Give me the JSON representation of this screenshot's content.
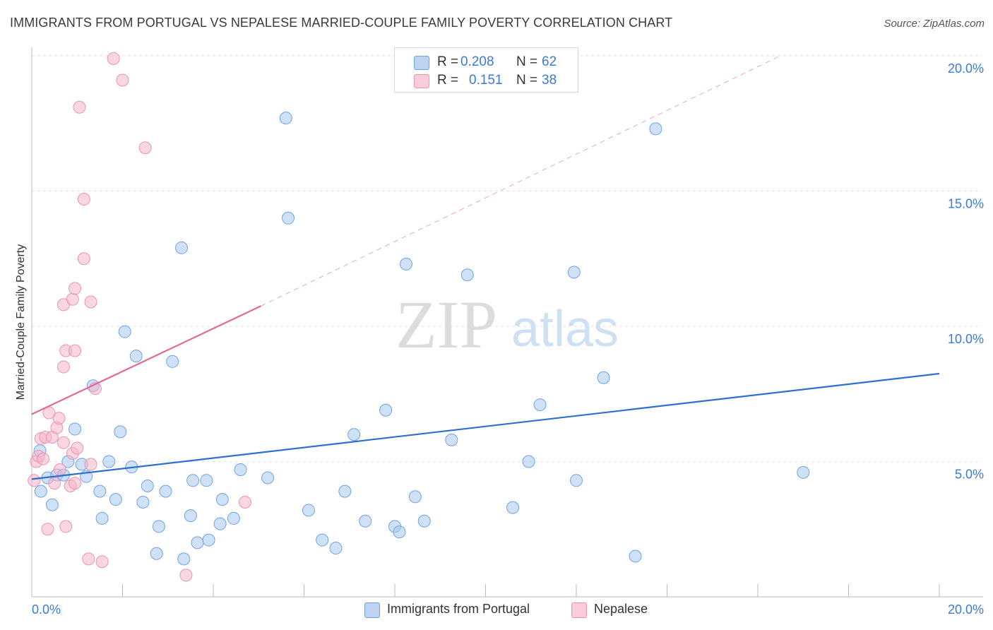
{
  "title": "IMMIGRANTS FROM PORTUGAL VS NEPALESE MARRIED-COUPLE FAMILY POVERTY CORRELATION CHART",
  "source": "Source: ZipAtlas.com",
  "watermark": {
    "zip": "ZIP",
    "atlas": "atlas"
  },
  "legend_top": [
    {
      "r_label": "R =",
      "r_value": "0.208",
      "n_label": "N =",
      "n_value": "62",
      "color": "#a8c8f0"
    },
    {
      "r_label": "R =",
      "r_value": "0.151",
      "n_label": "N =",
      "n_value": "38",
      "color": "#f5b5c8"
    }
  ],
  "legend_bottom": [
    {
      "label": "Immigrants from Portugal",
      "color": "#a8c8f0"
    },
    {
      "label": "Nepalese",
      "color": "#f5b5c8"
    }
  ],
  "chart_data": {
    "type": "scatter",
    "title": "IMMIGRANTS FROM PORTUGAL VS NEPALESE MARRIED-COUPLE FAMILY POVERTY CORRELATION CHART",
    "ylabel": "Married-Couple Family Poverty",
    "xlabel": "",
    "xlim": [
      0,
      20
    ],
    "ylim": [
      0,
      20
    ],
    "x_tick_labels": [
      {
        "value": 0,
        "label": "0.0%"
      },
      {
        "value": 20,
        "label": "20.0%"
      }
    ],
    "y_tick_labels": [
      {
        "value": 5,
        "label": "5.0%"
      },
      {
        "value": 10,
        "label": "10.0%"
      },
      {
        "value": 15,
        "label": "15.0%"
      },
      {
        "value": 20,
        "label": "20.0%"
      }
    ],
    "series": [
      {
        "name": "Immigrants from Portugal",
        "color": "#6fa3e0",
        "fill": "#a8c8f0",
        "trend": {
          "x0": 0,
          "y0": 4.35,
          "x1": 20,
          "y1": 8.25,
          "color": "#2f6fcf",
          "dashed_extension": false
        },
        "points": [
          [
            0.18,
            5.4
          ],
          [
            0.2,
            3.9
          ],
          [
            0.35,
            4.4
          ],
          [
            0.45,
            3.4
          ],
          [
            0.55,
            4.5
          ],
          [
            0.7,
            4.5
          ],
          [
            0.8,
            5.0
          ],
          [
            0.95,
            6.2
          ],
          [
            1.1,
            4.9
          ],
          [
            1.2,
            4.45
          ],
          [
            1.35,
            7.8
          ],
          [
            1.5,
            3.9
          ],
          [
            1.55,
            2.9
          ],
          [
            1.7,
            5.0
          ],
          [
            1.85,
            3.6
          ],
          [
            1.95,
            6.1
          ],
          [
            2.05,
            9.8
          ],
          [
            2.2,
            4.8
          ],
          [
            2.3,
            8.9
          ],
          [
            2.45,
            3.5
          ],
          [
            2.55,
            4.1
          ],
          [
            2.75,
            1.6
          ],
          [
            2.8,
            2.6
          ],
          [
            2.95,
            3.9
          ],
          [
            3.1,
            8.7
          ],
          [
            3.3,
            12.9
          ],
          [
            3.35,
            1.4
          ],
          [
            3.5,
            3.0
          ],
          [
            3.55,
            4.3
          ],
          [
            3.65,
            2.0
          ],
          [
            3.85,
            4.3
          ],
          [
            3.9,
            2.1
          ],
          [
            4.15,
            2.7
          ],
          [
            4.2,
            3.6
          ],
          [
            4.45,
            2.9
          ],
          [
            4.6,
            4.7
          ],
          [
            5.2,
            4.4
          ],
          [
            5.6,
            17.7
          ],
          [
            5.65,
            14.0
          ],
          [
            6.1,
            3.2
          ],
          [
            6.4,
            2.1
          ],
          [
            6.7,
            1.8
          ],
          [
            6.9,
            3.9
          ],
          [
            7.1,
            6.0
          ],
          [
            7.35,
            2.8
          ],
          [
            7.8,
            6.9
          ],
          [
            8.0,
            2.6
          ],
          [
            8.1,
            2.4
          ],
          [
            8.25,
            12.3
          ],
          [
            8.45,
            3.7
          ],
          [
            8.65,
            2.8
          ],
          [
            9.25,
            5.8
          ],
          [
            9.6,
            11.9
          ],
          [
            10.6,
            3.3
          ],
          [
            10.95,
            5.0
          ],
          [
            11.2,
            7.1
          ],
          [
            11.95,
            12.0
          ],
          [
            12.0,
            4.3
          ],
          [
            12.6,
            8.1
          ],
          [
            13.3,
            1.5
          ],
          [
            13.75,
            17.3
          ],
          [
            17.0,
            4.6
          ]
        ]
      },
      {
        "name": "Nepalese",
        "color": "#e895b0",
        "fill": "#f5b5c8",
        "trend": {
          "x0": 0,
          "y0": 6.75,
          "x1": 5.05,
          "y1": 10.75,
          "color": "#e06a95",
          "dashed_extension": true,
          "dash_to": {
            "x": 16.5,
            "y": 20.0
          }
        },
        "points": [
          [
            0.05,
            4.3
          ],
          [
            0.1,
            5.0
          ],
          [
            0.15,
            5.2
          ],
          [
            0.2,
            5.85
          ],
          [
            0.25,
            5.1
          ],
          [
            0.3,
            5.9
          ],
          [
            0.35,
            2.5
          ],
          [
            0.38,
            6.8
          ],
          [
            0.45,
            5.9
          ],
          [
            0.5,
            4.2
          ],
          [
            0.55,
            6.25
          ],
          [
            0.6,
            6.6
          ],
          [
            0.62,
            4.7
          ],
          [
            0.7,
            5.7
          ],
          [
            0.75,
            2.6
          ],
          [
            0.7,
            10.8
          ],
          [
            0.7,
            8.5
          ],
          [
            0.75,
            9.1
          ],
          [
            0.85,
            4.1
          ],
          [
            0.9,
            5.3
          ],
          [
            0.9,
            11.0
          ],
          [
            0.95,
            11.4
          ],
          [
            0.95,
            9.1
          ],
          [
            0.95,
            4.2
          ],
          [
            1.0,
            5.5
          ],
          [
            1.05,
            18.1
          ],
          [
            1.15,
            12.5
          ],
          [
            1.15,
            14.7
          ],
          [
            1.25,
            1.4
          ],
          [
            1.3,
            10.9
          ],
          [
            1.3,
            4.9
          ],
          [
            1.4,
            7.7
          ],
          [
            1.55,
            1.3
          ],
          [
            1.8,
            19.9
          ],
          [
            2.0,
            19.1
          ],
          [
            2.5,
            16.6
          ],
          [
            3.4,
            0.8
          ],
          [
            4.7,
            3.5
          ]
        ]
      }
    ]
  }
}
